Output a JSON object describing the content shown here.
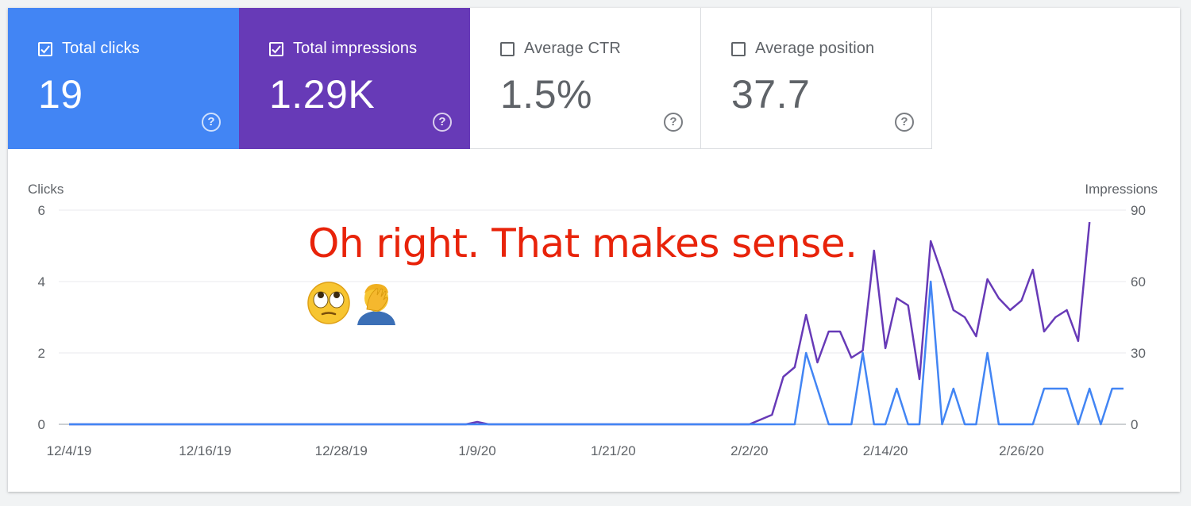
{
  "metrics": [
    {
      "label": "Total clicks",
      "value": "19",
      "checked": true,
      "color": "#4285f4"
    },
    {
      "label": "Total impressions",
      "value": "1.29K",
      "checked": true,
      "color": "#673ab7"
    },
    {
      "label": "Average CTR",
      "value": "1.5%",
      "checked": false
    },
    {
      "label": "Average position",
      "value": "37.7",
      "checked": false
    }
  ],
  "help_glyph": "?",
  "annotation": {
    "text": "Oh right. That makes sense.",
    "color": "#e8230a",
    "emojis": [
      "face-with-rolling-eyes-icon",
      "person-facepalming-icon"
    ]
  },
  "chart_data": {
    "type": "line",
    "ylabel_left": "Clicks",
    "ylabel_right": "Impressions",
    "ylim_left": [
      0,
      6
    ],
    "ylim_right": [
      0,
      90
    ],
    "yticks_left": [
      "0",
      "2",
      "4",
      "6"
    ],
    "yticks_right": [
      "0",
      "30",
      "60",
      "90"
    ],
    "xticks": [
      "12/4/19",
      "12/16/19",
      "12/28/19",
      "1/9/20",
      "1/21/20",
      "2/2/20",
      "2/14/20",
      "2/26/20"
    ],
    "x_start": "12/4/19",
    "grid": true,
    "series": [
      {
        "name": "Clicks",
        "axis": "left",
        "color": "#4285f4",
        "values": [
          0,
          0,
          0,
          0,
          0,
          0,
          0,
          0,
          0,
          0,
          0,
          0,
          0,
          0,
          0,
          0,
          0,
          0,
          0,
          0,
          0,
          0,
          0,
          0,
          0,
          0,
          0,
          0,
          0,
          0,
          0,
          0,
          0,
          0,
          0,
          0,
          0,
          0,
          0,
          0,
          0,
          0,
          0,
          0,
          0,
          0,
          0,
          0,
          0,
          0,
          0,
          0,
          0,
          0,
          0,
          0,
          0,
          0,
          0,
          0,
          0,
          0,
          0,
          0,
          0,
          2,
          1,
          0,
          0,
          0,
          2,
          0,
          0,
          1,
          0,
          0,
          4,
          0,
          1,
          0,
          0,
          2,
          0,
          0,
          0,
          0,
          1,
          1,
          1,
          0,
          1,
          0,
          1,
          1
        ]
      },
      {
        "name": "Impressions",
        "axis": "right",
        "color": "#673ab7",
        "values": [
          0,
          0,
          0,
          0,
          0,
          0,
          0,
          0,
          0,
          0,
          0,
          0,
          0,
          0,
          0,
          0,
          0,
          0,
          0,
          0,
          0,
          0,
          0,
          0,
          0,
          0,
          0,
          0,
          0,
          0,
          0,
          0,
          0,
          0,
          0,
          0,
          1,
          0,
          0,
          0,
          0,
          0,
          0,
          0,
          0,
          0,
          0,
          0,
          0,
          0,
          0,
          0,
          0,
          0,
          0,
          0,
          0,
          0,
          0,
          0,
          0,
          2,
          4,
          20,
          24,
          46,
          26,
          39,
          39,
          28,
          31,
          73,
          32,
          53,
          50,
          19,
          77,
          63,
          48,
          45,
          37,
          61,
          53,
          48,
          52,
          65,
          39,
          45,
          48,
          35,
          85
        ]
      }
    ]
  }
}
